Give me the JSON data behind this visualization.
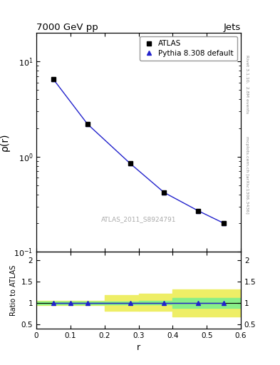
{
  "title": "7000 GeV pp",
  "title_right": "Jets",
  "ylabel_main": "ρ(r)",
  "ylabel_ratio": "Ratio to ATLAS",
  "xlabel": "r",
  "watermark": "ATLAS_2011_S8924791",
  "right_label1": "Rivet 3.1.10,  2.8M events",
  "right_label2": "mcplots.cern.ch [arXiv:1306.3436]",
  "main_x": [
    0.05,
    0.15,
    0.275,
    0.375,
    0.475,
    0.55
  ],
  "main_atlas_y": [
    6.5,
    2.2,
    0.85,
    0.42,
    0.27,
    0.2
  ],
  "main_pythia_y": [
    6.5,
    2.2,
    0.85,
    0.42,
    0.27,
    0.2
  ],
  "ratio_x": [
    0.05,
    0.1,
    0.15,
    0.275,
    0.375,
    0.475,
    0.55
  ],
  "ratio_y": [
    1.0,
    1.0,
    1.0,
    1.0,
    1.0,
    1.0,
    1.0
  ],
  "band_edges": [
    0.0,
    0.1,
    0.2,
    0.3,
    0.4,
    0.5,
    0.6
  ],
  "green_lo": [
    0.97,
    0.97,
    0.97,
    0.97,
    0.88,
    0.88,
    0.88
  ],
  "green_hi": [
    1.03,
    1.03,
    1.03,
    1.05,
    1.12,
    1.12,
    1.12
  ],
  "yellow_lo": [
    0.95,
    0.95,
    0.82,
    0.82,
    0.68,
    0.68,
    0.68
  ],
  "yellow_hi": [
    1.05,
    1.05,
    1.18,
    1.22,
    1.32,
    1.32,
    1.32
  ],
  "xlim": [
    0.0,
    0.6
  ],
  "ylim_main": [
    0.1,
    20.0
  ],
  "ylim_ratio": [
    0.4,
    2.2
  ],
  "line_color": "#2222cc",
  "atlas_color": "#000000",
  "green_color": "#88EE88",
  "yellow_color": "#EEEE66",
  "bg_color": "#ffffff",
  "legend_loc": "upper right"
}
